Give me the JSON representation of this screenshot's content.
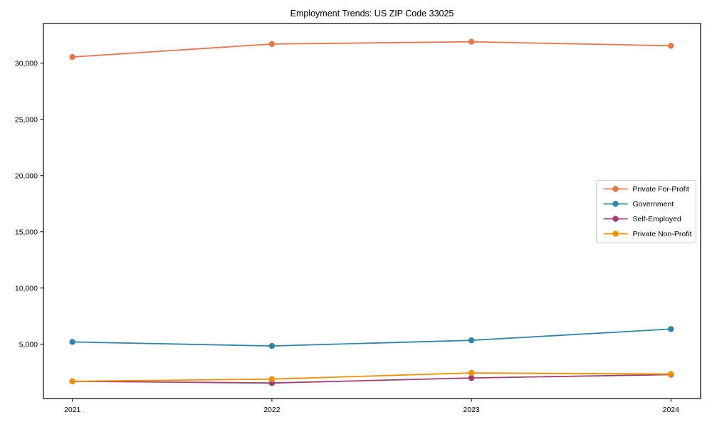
{
  "chart_data": {
    "type": "line",
    "title": "Employment Trends: US ZIP Code 33025",
    "xlabel": "",
    "ylabel": "",
    "categories": [
      "2021",
      "2022",
      "2023",
      "2024"
    ],
    "series": [
      {
        "name": "Private For-Profit",
        "color": "#E8764B",
        "values": [
          30550,
          31700,
          31900,
          31550
        ]
      },
      {
        "name": "Government",
        "color": "#2E86AB",
        "values": [
          5200,
          4850,
          5350,
          6350
        ]
      },
      {
        "name": "Self-Employed",
        "color": "#A23B72",
        "values": [
          1700,
          1550,
          2000,
          2300
        ]
      },
      {
        "name": "Private Non-Profit",
        "color": "#F18F01",
        "values": [
          1700,
          1900,
          2450,
          2350
        ]
      }
    ],
    "yticks": [
      5000,
      10000,
      15000,
      20000,
      25000,
      30000
    ],
    "ytick_labels": [
      "5,000",
      "10,000",
      "15,000",
      "20,000",
      "25,000",
      "30,000"
    ],
    "ylim": [
      170,
      33530
    ],
    "grid": false,
    "legend_position": "center-right",
    "frame": true,
    "axis_color": "#000000",
    "legend_border_color": "#cccccc",
    "background_color": "#ffffff"
  }
}
